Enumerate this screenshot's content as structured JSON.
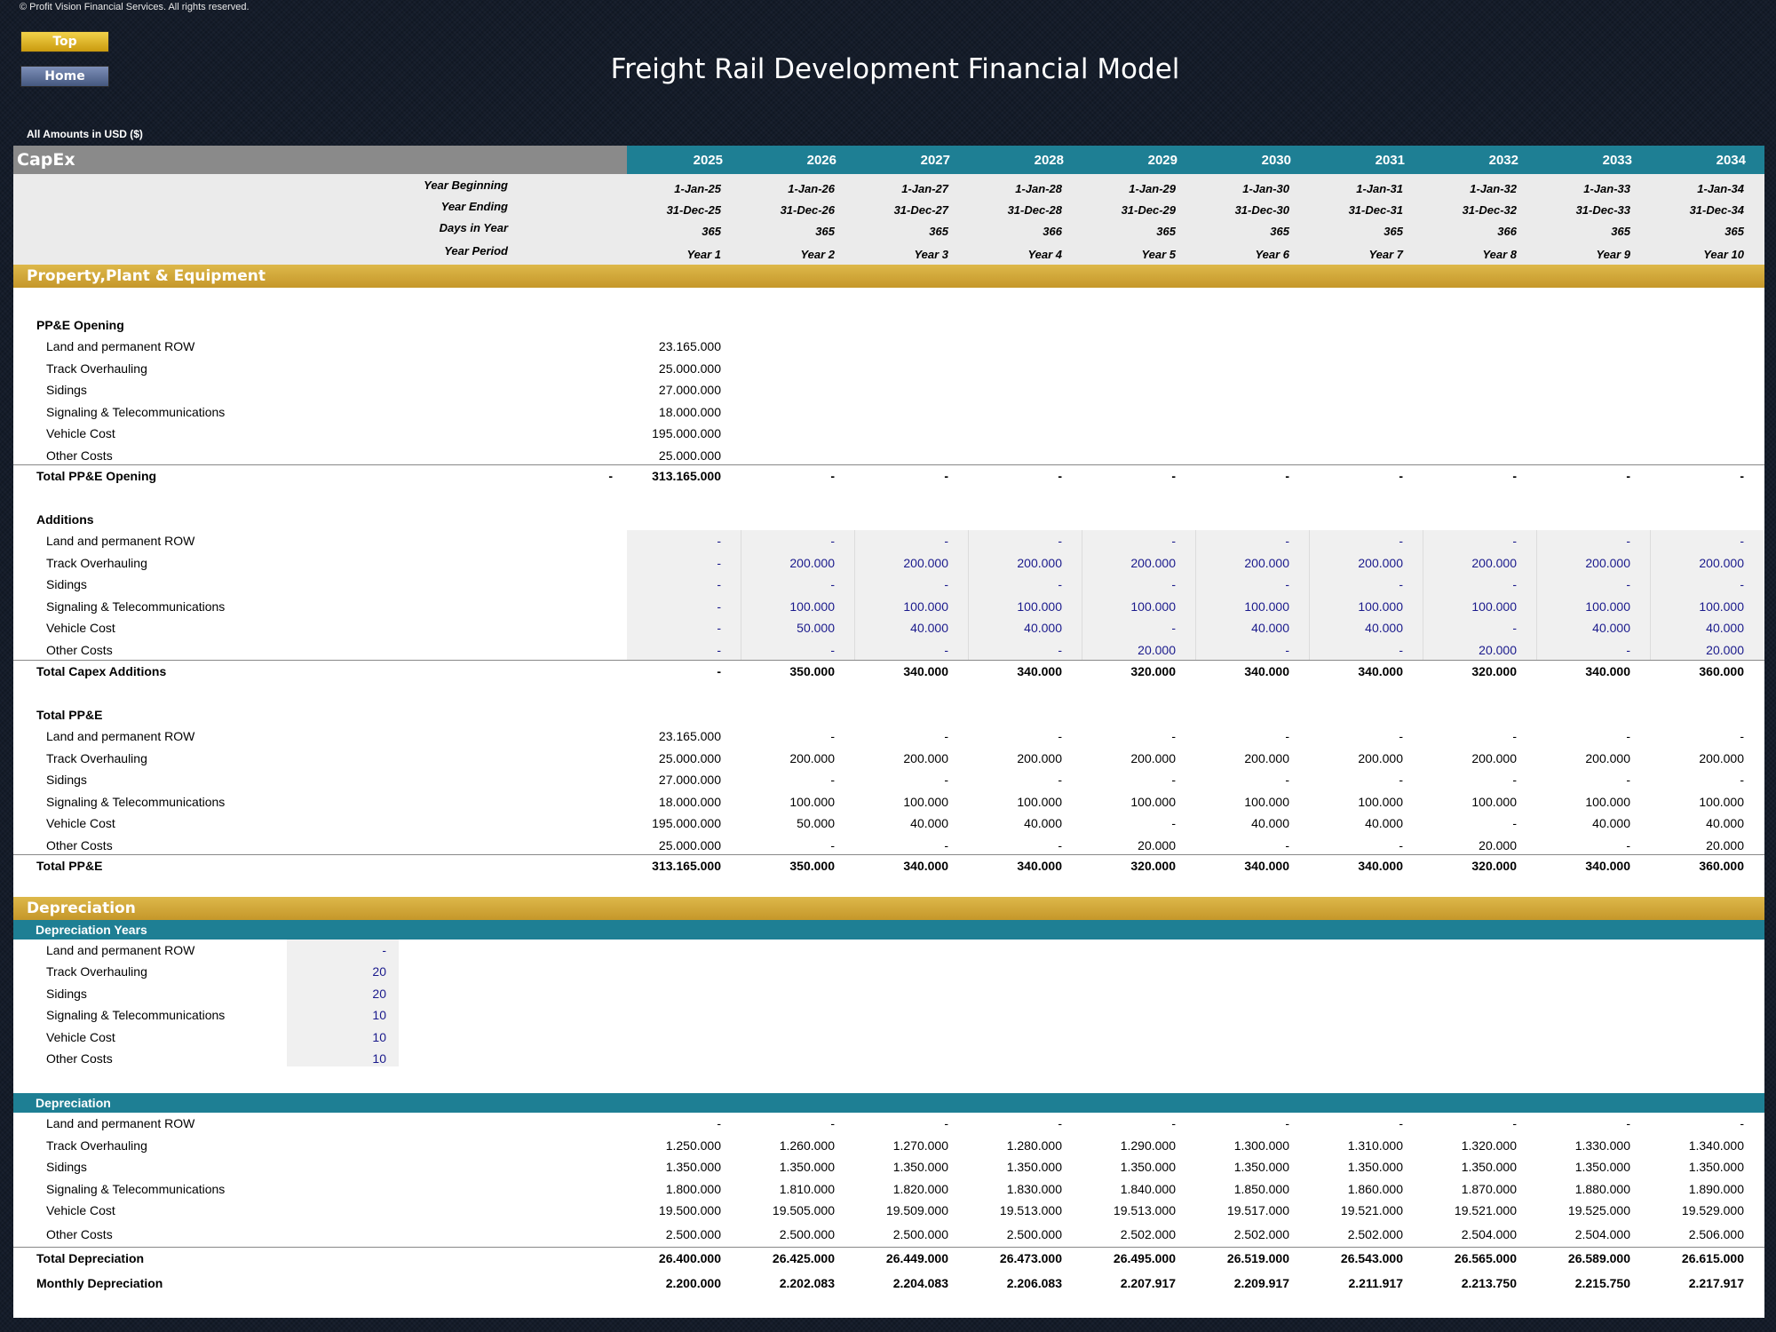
{
  "copyright": "© Profit Vision Financial Services. All rights reserved.",
  "nav": {
    "top": "Top",
    "home": "Home"
  },
  "title": "Freight Rail Development Financial Model",
  "amounts_note": "All Amounts in  USD ($)",
  "sheet_title": "CapEx",
  "years": [
    "2025",
    "2026",
    "2027",
    "2028",
    "2029",
    "2030",
    "2031",
    "2032",
    "2033",
    "2034"
  ],
  "meta": {
    "labels": {
      "begin": "Year Beginning",
      "end": "Year Ending",
      "days": "Days in Year",
      "period": "Year Period"
    },
    "begin": [
      "1-Jan-25",
      "1-Jan-26",
      "1-Jan-27",
      "1-Jan-28",
      "1-Jan-29",
      "1-Jan-30",
      "1-Jan-31",
      "1-Jan-32",
      "1-Jan-33",
      "1-Jan-34"
    ],
    "end": [
      "31-Dec-25",
      "31-Dec-26",
      "31-Dec-27",
      "31-Dec-28",
      "31-Dec-29",
      "31-Dec-30",
      "31-Dec-31",
      "31-Dec-32",
      "31-Dec-33",
      "31-Dec-34"
    ],
    "days": [
      "365",
      "365",
      "365",
      "366",
      "365",
      "365",
      "365",
      "366",
      "365",
      "365"
    ],
    "period": [
      "Year 1",
      "Year 2",
      "Year 3",
      "Year 4",
      "Year 5",
      "Year 6",
      "Year 7",
      "Year 8",
      "Year 9",
      "Year 10"
    ]
  },
  "sections": {
    "ppe": "Property,Plant & Equipment",
    "depreciation": "Depreciation",
    "dep_years": "Depreciation Years",
    "dep": "Depreciation"
  },
  "opening": {
    "heading": "PP&E Opening",
    "rows": [
      {
        "label": "Land and permanent ROW",
        "value": "23.165.000"
      },
      {
        "label": "Track Overhauling",
        "value": "25.000.000"
      },
      {
        "label": "Sidings",
        "value": "27.000.000"
      },
      {
        "label": "Signaling & Telecommunications",
        "value": "18.000.000"
      },
      {
        "label": "Vehicle Cost",
        "value": "195.000.000"
      },
      {
        "label": "Other Costs",
        "value": "25.000.000"
      }
    ],
    "total": {
      "label": "Total PP&E Opening",
      "pre": "-",
      "values": [
        "313.165.000",
        "-",
        "-",
        "-",
        "-",
        "-",
        "-",
        "-",
        "-",
        "-"
      ]
    }
  },
  "additions": {
    "heading": "Additions",
    "rows": [
      {
        "label": "Land and permanent ROW",
        "values": [
          "-",
          "-",
          "-",
          "-",
          "-",
          "-",
          "-",
          "-",
          "-",
          "-"
        ]
      },
      {
        "label": "Track Overhauling",
        "values": [
          "-",
          "200.000",
          "200.000",
          "200.000",
          "200.000",
          "200.000",
          "200.000",
          "200.000",
          "200.000",
          "200.000"
        ]
      },
      {
        "label": "Sidings",
        "values": [
          "-",
          "-",
          "-",
          "-",
          "-",
          "-",
          "-",
          "-",
          "-",
          "-"
        ]
      },
      {
        "label": "Signaling & Telecommunications",
        "values": [
          "-",
          "100.000",
          "100.000",
          "100.000",
          "100.000",
          "100.000",
          "100.000",
          "100.000",
          "100.000",
          "100.000"
        ]
      },
      {
        "label": "Vehicle Cost",
        "values": [
          "-",
          "50.000",
          "40.000",
          "40.000",
          "-",
          "40.000",
          "40.000",
          "-",
          "40.000",
          "40.000"
        ]
      },
      {
        "label": "Other Costs",
        "values": [
          "-",
          "-",
          "-",
          "-",
          "20.000",
          "-",
          "-",
          "20.000",
          "-",
          "20.000"
        ]
      }
    ],
    "total": {
      "label": "Total Capex Additions",
      "values": [
        "-",
        "350.000",
        "340.000",
        "340.000",
        "320.000",
        "340.000",
        "340.000",
        "320.000",
        "340.000",
        "360.000"
      ]
    }
  },
  "total_ppe": {
    "heading": "Total PP&E",
    "rows": [
      {
        "label": "Land and permanent ROW",
        "values": [
          "23.165.000",
          "-",
          "-",
          "-",
          "-",
          "-",
          "-",
          "-",
          "-",
          "-"
        ]
      },
      {
        "label": "Track Overhauling",
        "values": [
          "25.000.000",
          "200.000",
          "200.000",
          "200.000",
          "200.000",
          "200.000",
          "200.000",
          "200.000",
          "200.000",
          "200.000"
        ]
      },
      {
        "label": "Sidings",
        "values": [
          "27.000.000",
          "-",
          "-",
          "-",
          "-",
          "-",
          "-",
          "-",
          "-",
          "-"
        ]
      },
      {
        "label": "Signaling & Telecommunications",
        "values": [
          "18.000.000",
          "100.000",
          "100.000",
          "100.000",
          "100.000",
          "100.000",
          "100.000",
          "100.000",
          "100.000",
          "100.000"
        ]
      },
      {
        "label": "Vehicle Cost",
        "values": [
          "195.000.000",
          "50.000",
          "40.000",
          "40.000",
          "-",
          "40.000",
          "40.000",
          "-",
          "40.000",
          "40.000"
        ]
      },
      {
        "label": "Other Costs",
        "values": [
          "25.000.000",
          "-",
          "-",
          "-",
          "20.000",
          "-",
          "-",
          "20.000",
          "-",
          "20.000"
        ]
      }
    ],
    "total": {
      "label": "Total PP&E",
      "values": [
        "313.165.000",
        "350.000",
        "340.000",
        "340.000",
        "320.000",
        "340.000",
        "340.000",
        "320.000",
        "340.000",
        "360.000"
      ]
    }
  },
  "dep_years": [
    {
      "label": "Land and permanent ROW",
      "value": "-"
    },
    {
      "label": "Track Overhauling",
      "value": "20"
    },
    {
      "label": "Sidings",
      "value": "20"
    },
    {
      "label": "Signaling & Telecommunications",
      "value": "10"
    },
    {
      "label": "Vehicle Cost",
      "value": "10"
    },
    {
      "label": "Other Costs",
      "value": "10"
    }
  ],
  "depreciation": {
    "rows": [
      {
        "label": "Land and permanent ROW",
        "values": [
          "-",
          "-",
          "-",
          "-",
          "-",
          "-",
          "-",
          "-",
          "-",
          "-"
        ]
      },
      {
        "label": "Track Overhauling",
        "values": [
          "1.250.000",
          "1.260.000",
          "1.270.000",
          "1.280.000",
          "1.290.000",
          "1.300.000",
          "1.310.000",
          "1.320.000",
          "1.330.000",
          "1.340.000"
        ]
      },
      {
        "label": "Sidings",
        "values": [
          "1.350.000",
          "1.350.000",
          "1.350.000",
          "1.350.000",
          "1.350.000",
          "1.350.000",
          "1.350.000",
          "1.350.000",
          "1.350.000",
          "1.350.000"
        ]
      },
      {
        "label": "Signaling & Telecommunications",
        "values": [
          "1.800.000",
          "1.810.000",
          "1.820.000",
          "1.830.000",
          "1.840.000",
          "1.850.000",
          "1.860.000",
          "1.870.000",
          "1.880.000",
          "1.890.000"
        ]
      },
      {
        "label": "Vehicle Cost",
        "values": [
          "19.500.000",
          "19.505.000",
          "19.509.000",
          "19.513.000",
          "19.513.000",
          "19.517.000",
          "19.521.000",
          "19.521.000",
          "19.525.000",
          "19.529.000"
        ]
      },
      {
        "label": "Other Costs",
        "values": [
          "2.500.000",
          "2.500.000",
          "2.500.000",
          "2.500.000",
          "2.502.000",
          "2.502.000",
          "2.502.000",
          "2.504.000",
          "2.504.000",
          "2.506.000"
        ]
      }
    ],
    "total": {
      "label": "Total Depreciation",
      "values": [
        "26.400.000",
        "26.425.000",
        "26.449.000",
        "26.473.000",
        "26.495.000",
        "26.519.000",
        "26.543.000",
        "26.565.000",
        "26.589.000",
        "26.615.000"
      ]
    },
    "monthly": {
      "label": "Monthly Depreciation",
      "values": [
        "2.200.000",
        "2.202.083",
        "2.204.083",
        "2.206.083",
        "2.207.917",
        "2.209.917",
        "2.211.917",
        "2.213.750",
        "2.215.750",
        "2.217.917"
      ]
    }
  },
  "colors": {
    "teal": "#1e7f94",
    "gold": "#c5972a",
    "input_blue": "#1a1a8c",
    "background": "#141c2a"
  }
}
